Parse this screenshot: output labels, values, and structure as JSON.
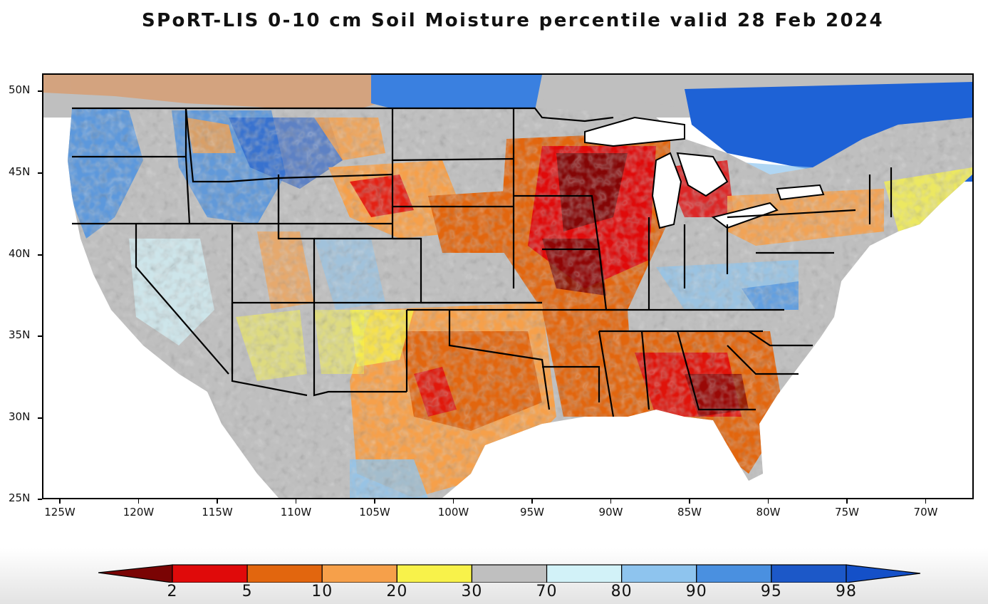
{
  "title": "SPoRT-LIS 0-10 cm Soil Moisture percentile valid 28 Feb 2024",
  "map": {
    "projection": "lat-lon",
    "lon_range": [
      -126,
      -66.5
    ],
    "lat_range": [
      24.9,
      51.0
    ],
    "region": "contiguous United States",
    "y_tick_labels": [
      "50N",
      "45N",
      "40N",
      "35N",
      "30N",
      "25N"
    ],
    "x_tick_labels": [
      "125W",
      "120W",
      "115W",
      "110W",
      "105W",
      "100W",
      "95W",
      "90W",
      "85W",
      "80W",
      "75W",
      "70W"
    ],
    "dominant_categories": {
      "upper_midwest_and_iowa": "2-5",
      "southeast_and_gulf_coast": "2-10",
      "texas_and_southern_plains": "5-20",
      "great_basin_and_southwest": "30-70",
      "canada_north_of_border": "90-98",
      "northern_rockies": "70-95"
    }
  },
  "colorbar": {
    "labels": [
      "2",
      "5",
      "10",
      "20",
      "30",
      "70",
      "80",
      "90",
      "95",
      "98"
    ],
    "colors": [
      "#7a0404",
      "#e00a0a",
      "#e2660e",
      "#f6a04a",
      "#f8f24a",
      "#bfbfbf",
      "#d2f2f8",
      "#8ec4ee",
      "#4a90e0",
      "#1c58c8",
      "#1450c8"
    ],
    "extends": "both"
  },
  "colors": {
    "water": "#ffffff",
    "borders": "#000000"
  }
}
